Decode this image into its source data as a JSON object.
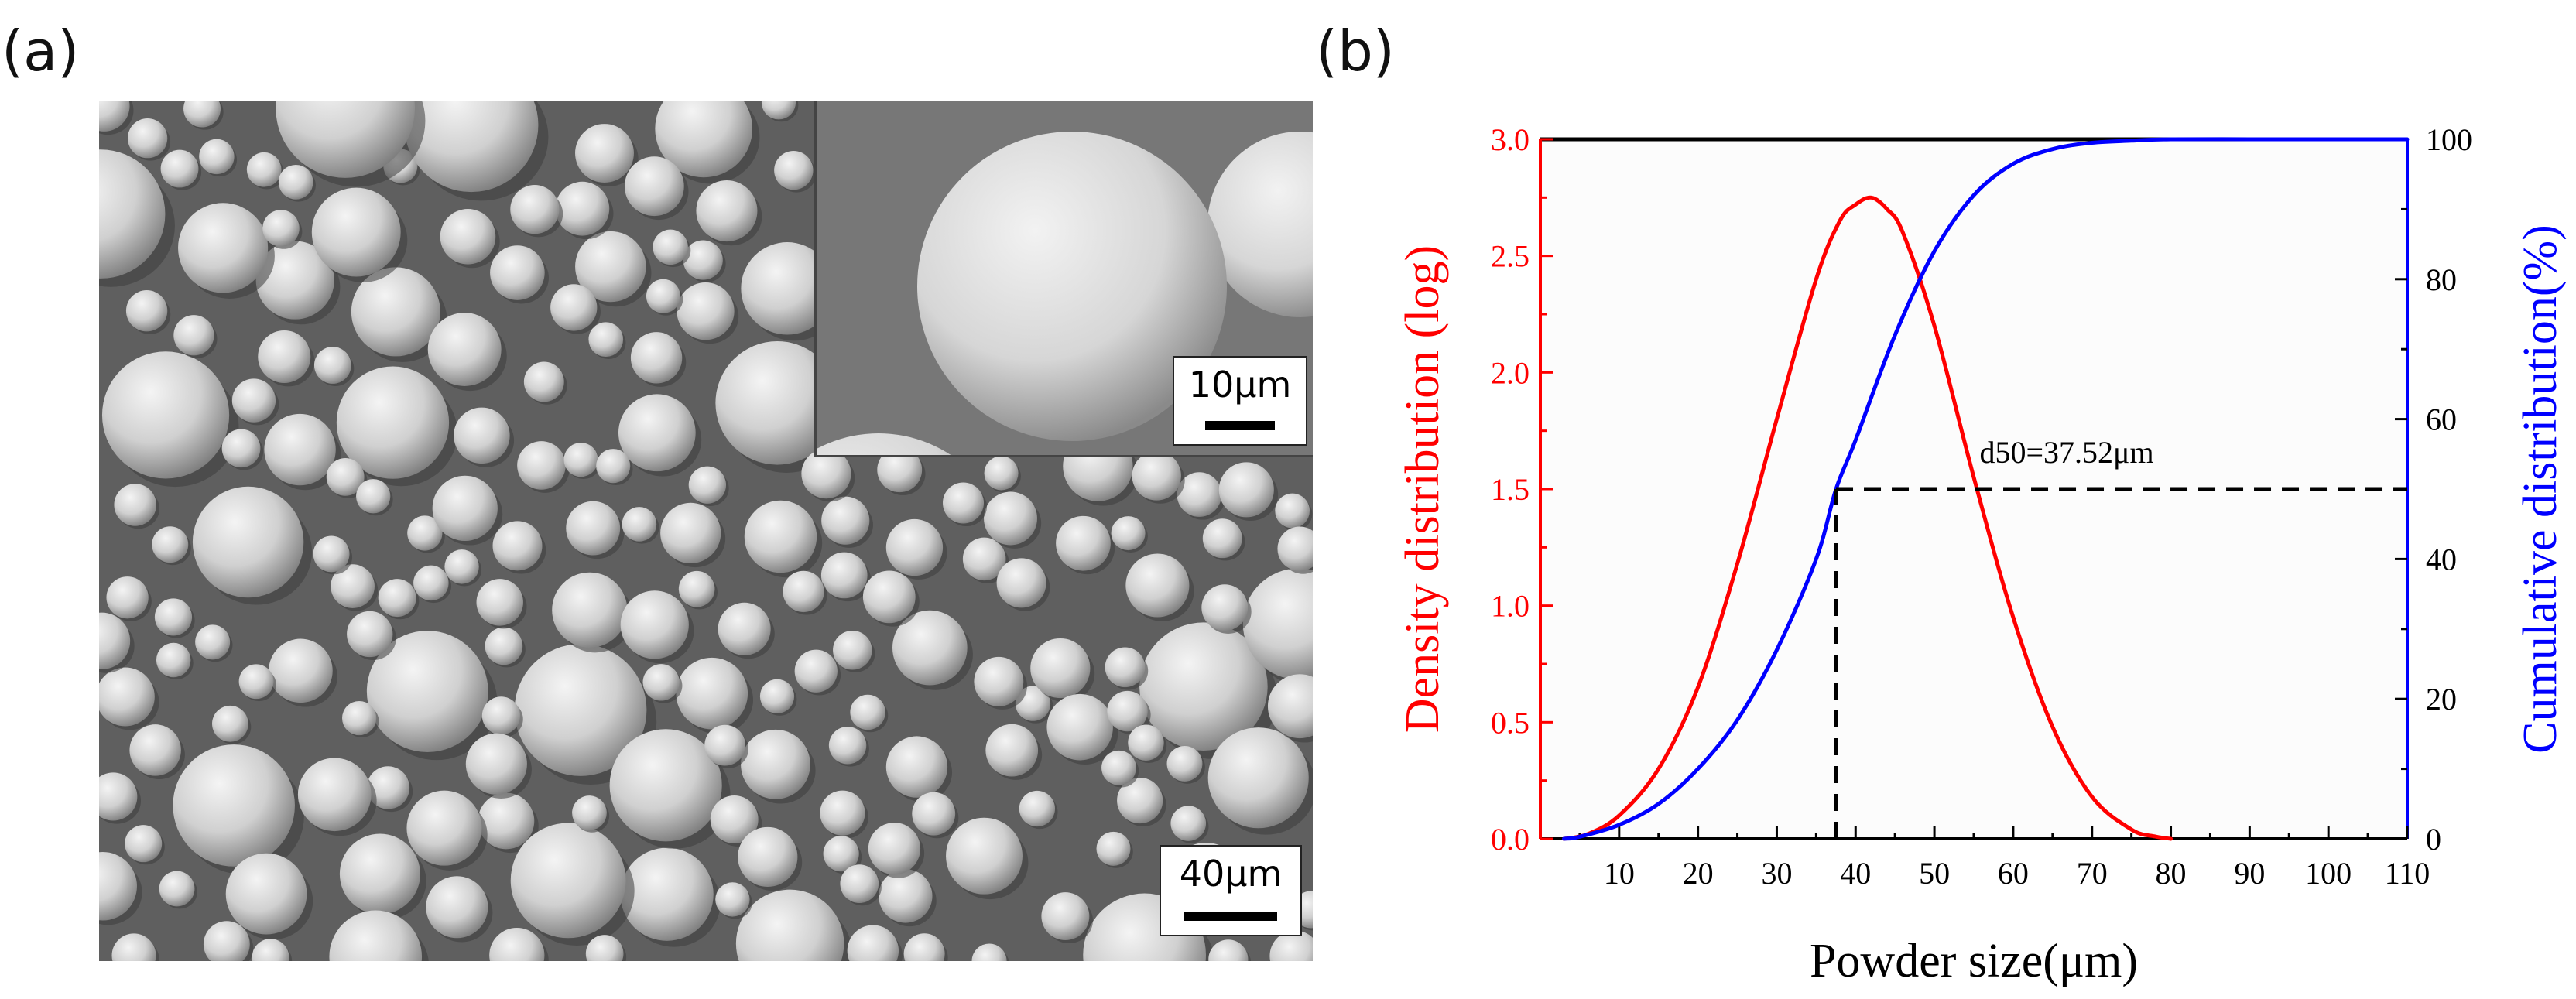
{
  "panels": {
    "a": {
      "label": "(a)"
    },
    "b": {
      "label": "(b)"
    }
  },
  "sem": {
    "main_scalebar": "40μm",
    "inset_scalebar": "10μm"
  },
  "colors": {
    "density": "#ff0000",
    "cumulative": "#0000ff",
    "d50_marker": "#000000",
    "sem_background": "#5f5f5f"
  },
  "chart_data": {
    "type": "line",
    "xlabel": "Powder size(μm)",
    "ylabel_left": "Density distribution (log)",
    "ylabel_right": "Cumulative distribution(%)",
    "xlim": [
      0,
      110
    ],
    "ylim_left": [
      0,
      3.0
    ],
    "ylim_right": [
      0,
      100
    ],
    "x_ticks": [
      "10",
      "20",
      "30",
      "40",
      "50",
      "60",
      "70",
      "80",
      "90",
      "100",
      "110"
    ],
    "y_left_ticks": [
      "0.0",
      "0.5",
      "1.0",
      "1.5",
      "2.0",
      "2.5",
      "3.0"
    ],
    "y_right_ticks": [
      "0",
      "20",
      "40",
      "60",
      "80",
      "100"
    ],
    "grid": false,
    "series": [
      {
        "axis": "left",
        "color": "#ff0000",
        "x": [
          3,
          6,
          10,
          15,
          20,
          25,
          30,
          35,
          38,
          40,
          42,
          44,
          46,
          50,
          55,
          60,
          65,
          70,
          75,
          78,
          80
        ],
        "y": [
          0.0,
          0.02,
          0.1,
          0.3,
          0.65,
          1.18,
          1.8,
          2.4,
          2.65,
          2.72,
          2.75,
          2.7,
          2.6,
          2.2,
          1.55,
          0.95,
          0.48,
          0.18,
          0.04,
          0.01,
          0.0
        ]
      },
      {
        "axis": "right",
        "color": "#0000ff",
        "x": [
          3,
          5,
          10,
          15,
          20,
          25,
          30,
          35,
          37.52,
          40,
          45,
          50,
          55,
          60,
          65,
          70,
          75,
          80,
          90,
          100,
          110
        ],
        "y": [
          0,
          0.3,
          2,
          5,
          10,
          17,
          27,
          40,
          50,
          57,
          72,
          84,
          92,
          96.5,
          98.6,
          99.5,
          99.8,
          100,
          100,
          100,
          100
        ]
      }
    ],
    "annotations": [
      {
        "text": "d50=37.52μm",
        "x": 37.52,
        "y_right": 50
      }
    ]
  }
}
